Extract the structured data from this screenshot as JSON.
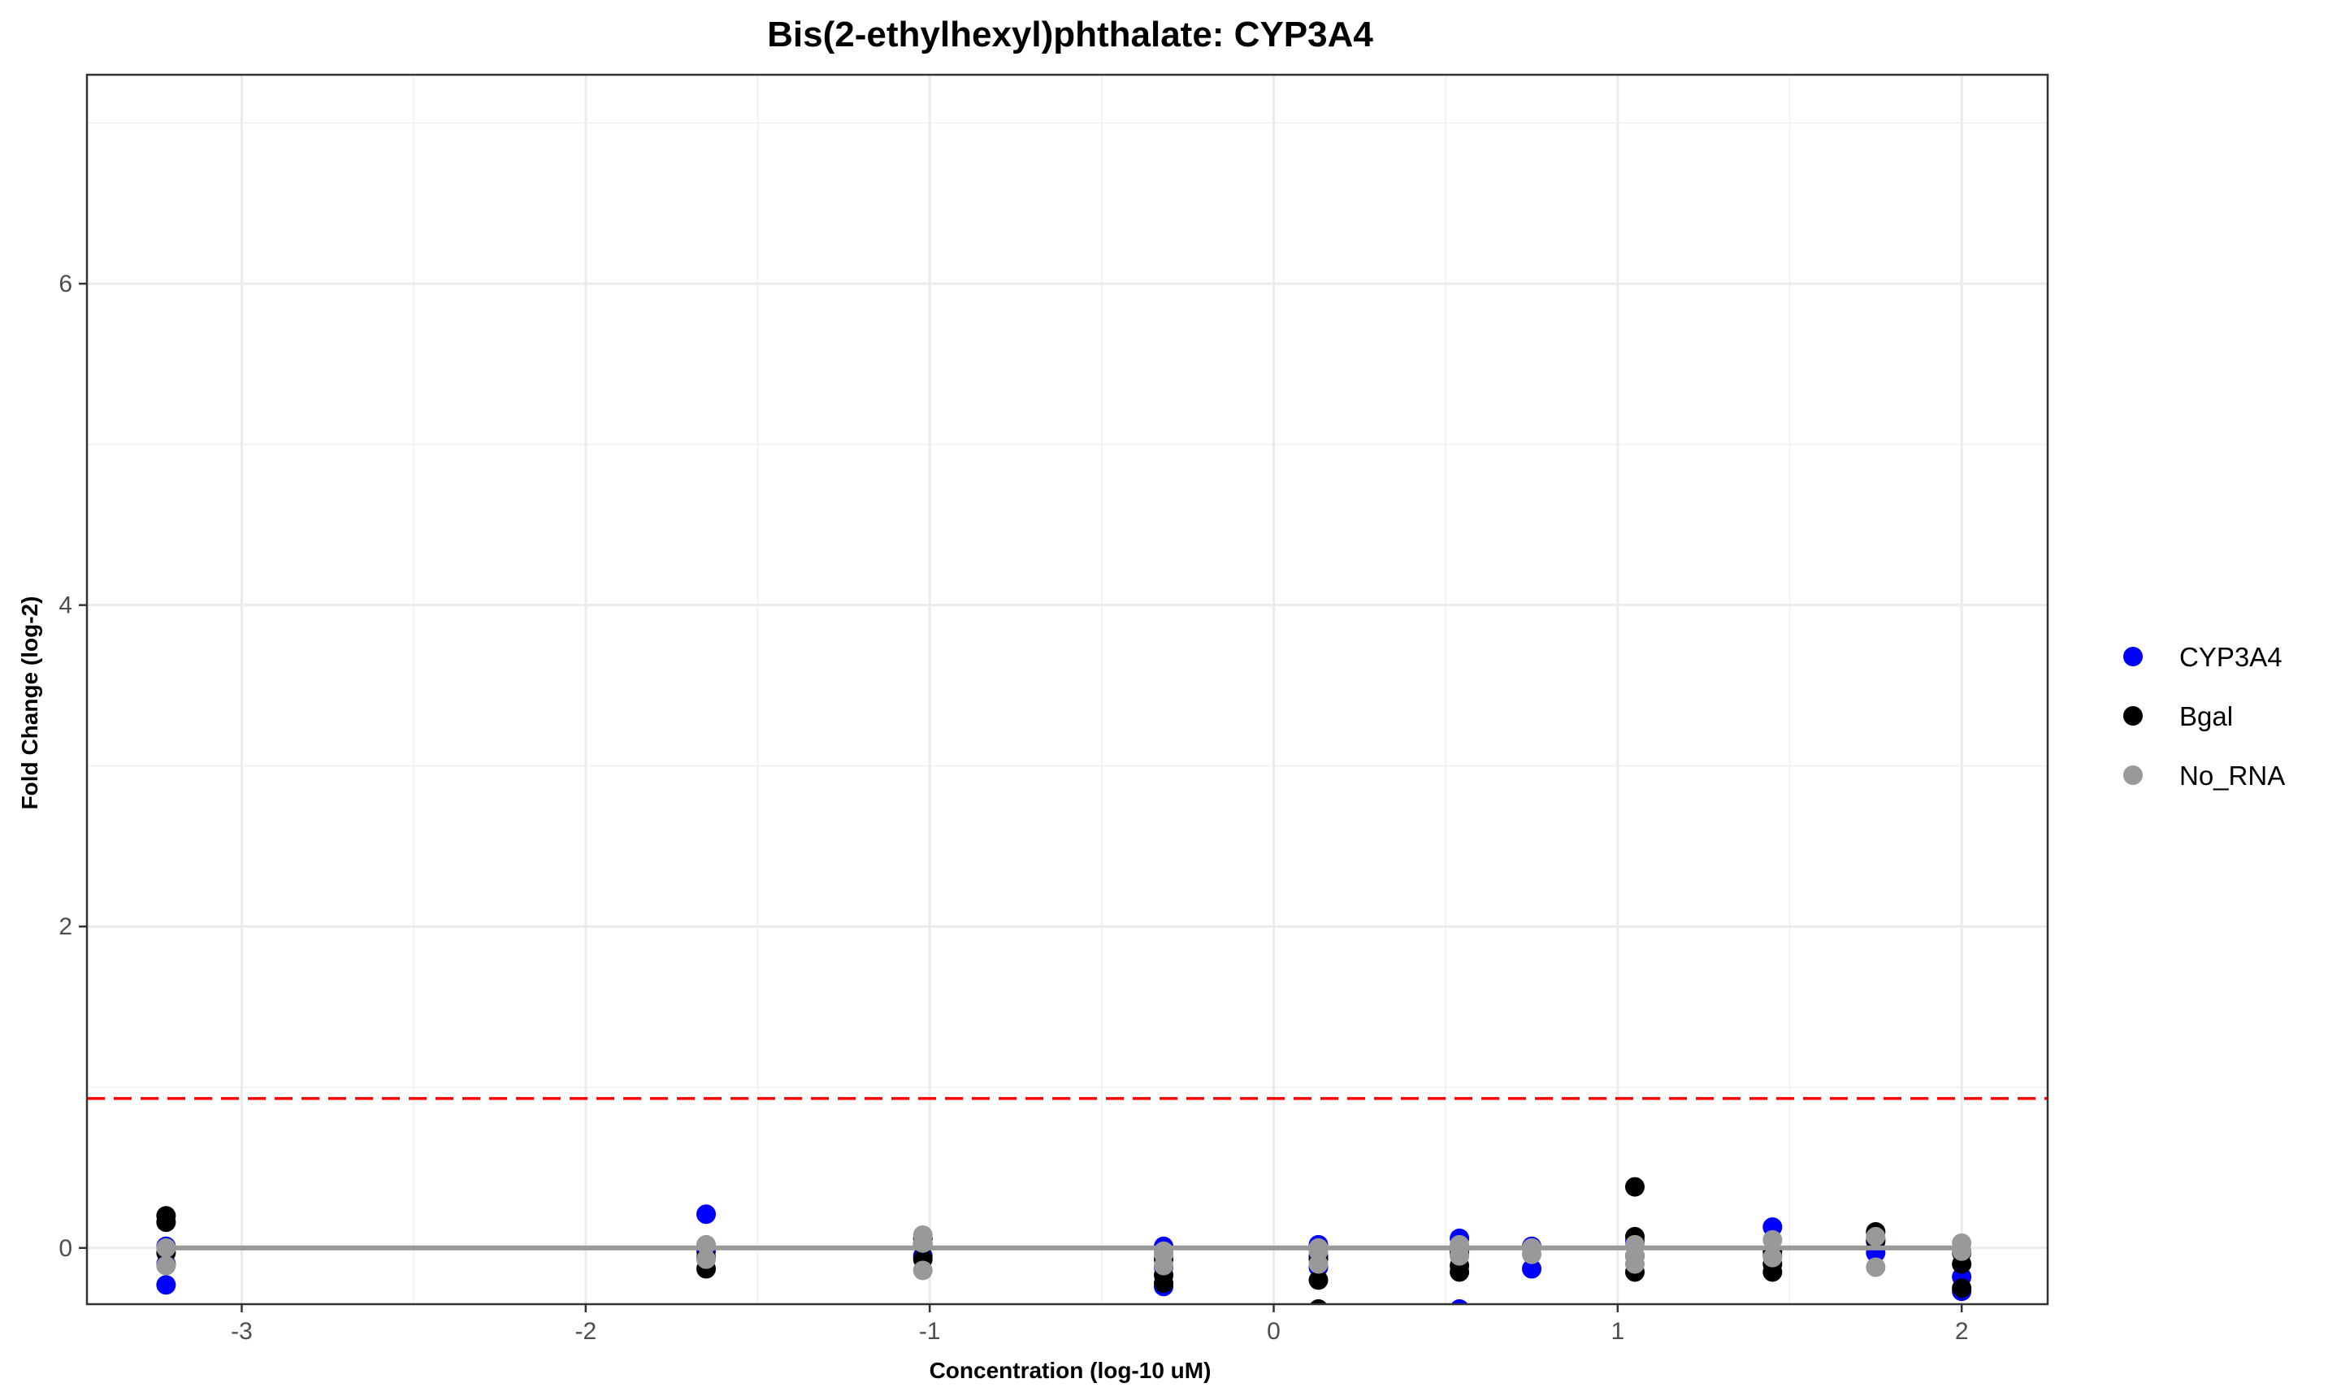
{
  "chart_data": {
    "type": "scatter",
    "title": "Bis(2-ethylhexyl)phthalate: CYP3A4",
    "xlabel": "Concentration (log-10 uM)",
    "ylabel": "Fold Change (log-2)",
    "xlim": [
      -3.45,
      2.25
    ],
    "ylim": [
      -0.35,
      7.3
    ],
    "x_ticks": [
      -3,
      -2,
      -1,
      0,
      1,
      2
    ],
    "x_tick_labels": [
      "-3",
      "-2",
      "-1",
      "0",
      "1",
      "2"
    ],
    "y_ticks": [
      0,
      2,
      4,
      6
    ],
    "y_tick_labels": [
      "0",
      "2",
      "4",
      "6"
    ],
    "y_minor_ticks": [
      1,
      3,
      5,
      7
    ],
    "x_minor_ticks": [
      -2.5,
      -1.5,
      -0.5,
      0.5,
      1.5
    ],
    "grid": true,
    "legend_position": "right",
    "threshold_line": {
      "y": 0.93,
      "color": "#ff0000",
      "style": "dashed"
    },
    "fit_line": {
      "x": [
        -3.22,
        2.0
      ],
      "y": [
        0,
        0
      ],
      "color": "#999999"
    },
    "series": [
      {
        "name": "CYP3A4",
        "color": "#0000ff",
        "points": [
          [
            -3.22,
            -0.23
          ],
          [
            -3.22,
            -0.1
          ],
          [
            -3.22,
            0.01
          ],
          [
            -1.65,
            0.21
          ],
          [
            -1.65,
            -0.02
          ],
          [
            -1.65,
            0.0
          ],
          [
            -1.02,
            -0.05
          ],
          [
            -1.02,
            0.03
          ],
          [
            -0.32,
            0.01
          ],
          [
            -0.32,
            -0.24
          ],
          [
            -0.32,
            -0.12
          ],
          [
            0.13,
            0.02
          ],
          [
            0.13,
            -0.05
          ],
          [
            0.13,
            -0.12
          ],
          [
            0.54,
            0.06
          ],
          [
            0.54,
            -0.04
          ],
          [
            0.54,
            -0.38
          ],
          [
            0.75,
            0.01
          ],
          [
            0.75,
            -0.13
          ],
          [
            1.05,
            0.04
          ],
          [
            1.05,
            -0.05
          ],
          [
            1.45,
            0.13
          ],
          [
            1.45,
            -0.05
          ],
          [
            1.75,
            0.04
          ],
          [
            1.75,
            -0.03
          ],
          [
            2.0,
            -0.27
          ],
          [
            2.0,
            -0.18
          ]
        ]
      },
      {
        "name": "Bgal",
        "color": "#000000",
        "points": [
          [
            -3.22,
            0.2
          ],
          [
            -3.22,
            0.16
          ],
          [
            -3.22,
            -0.03
          ],
          [
            -1.65,
            -0.13
          ],
          [
            -1.65,
            -0.06
          ],
          [
            -1.02,
            -0.07
          ],
          [
            -1.02,
            0.02
          ],
          [
            -1.02,
            0.06
          ],
          [
            -0.32,
            -0.22
          ],
          [
            -0.32,
            -0.17
          ],
          [
            -0.32,
            -0.07
          ],
          [
            0.13,
            -0.38
          ],
          [
            0.13,
            -0.2
          ],
          [
            0.13,
            -0.07
          ],
          [
            0.54,
            -0.15
          ],
          [
            0.54,
            -0.11
          ],
          [
            0.54,
            -0.02
          ],
          [
            1.05,
            0.38
          ],
          [
            1.05,
            0.07
          ],
          [
            1.05,
            -0.15
          ],
          [
            1.45,
            -0.15
          ],
          [
            1.45,
            -0.1
          ],
          [
            1.45,
            -0.02
          ],
          [
            1.75,
            0.1
          ],
          [
            1.75,
            0.05
          ],
          [
            2.0,
            -0.25
          ],
          [
            2.0,
            -0.1
          ],
          [
            2.0,
            -0.03
          ]
        ]
      },
      {
        "name": "No_RNA",
        "color": "#999999",
        "points": [
          [
            -3.22,
            0.0
          ],
          [
            -3.22,
            -0.11
          ],
          [
            -1.65,
            0.02
          ],
          [
            -1.65,
            -0.07
          ],
          [
            -1.02,
            0.08
          ],
          [
            -1.02,
            -0.14
          ],
          [
            -1.02,
            0.03
          ],
          [
            -0.32,
            -0.04
          ],
          [
            -0.32,
            -0.11
          ],
          [
            -0.32,
            -0.02
          ],
          [
            0.13,
            0.0
          ],
          [
            0.13,
            -0.1
          ],
          [
            0.13,
            -0.02
          ],
          [
            0.54,
            0.0
          ],
          [
            0.54,
            -0.05
          ],
          [
            0.54,
            0.02
          ],
          [
            0.75,
            0.0
          ],
          [
            0.75,
            -0.04
          ],
          [
            1.05,
            -0.05
          ],
          [
            1.05,
            0.02
          ],
          [
            1.05,
            -0.1
          ],
          [
            1.45,
            0.05
          ],
          [
            1.45,
            -0.06
          ],
          [
            1.75,
            0.07
          ],
          [
            1.75,
            -0.12
          ],
          [
            2.0,
            0.03
          ],
          [
            2.0,
            -0.02
          ]
        ]
      }
    ]
  }
}
